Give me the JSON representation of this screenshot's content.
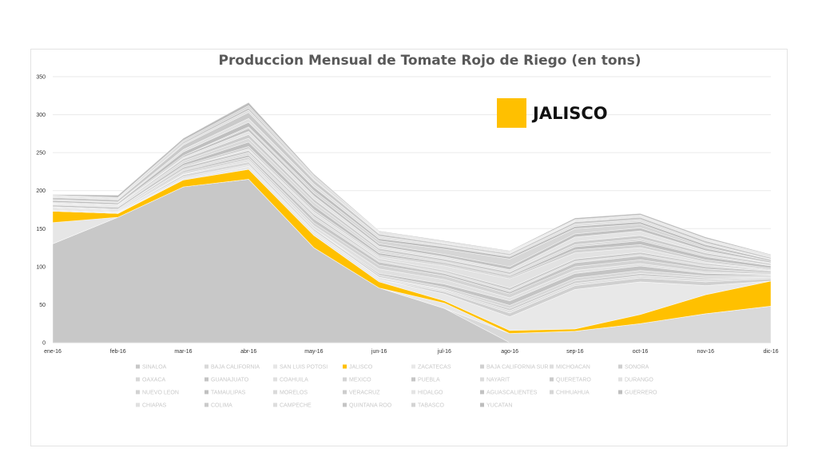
{
  "chart_data": {
    "type": "area",
    "stacked": true,
    "title": "Produccion Mensual de Tomate Rojo de Riego (en tons)",
    "xlabel": "",
    "ylabel": "",
    "ylim": [
      0,
      350
    ],
    "yticks": [
      0,
      50,
      100,
      150,
      200,
      250,
      300,
      350
    ],
    "grid": true,
    "legend_position": "bottom",
    "categories": [
      "ene-16",
      "feb-16",
      "mar-16",
      "abr-16",
      "may-16",
      "jun-16",
      "jul-16",
      "ago-16",
      "sep-16",
      "oct-16",
      "nov-16",
      "dic-16"
    ],
    "highlight_series": "JALISCO",
    "callout": {
      "label": "JALISCO",
      "color": "#ffc000"
    },
    "series": [
      {
        "name": "SINALOA",
        "color": "#c8c8c8",
        "values": [
          130,
          165,
          205,
          215,
          125,
          72,
          45,
          0,
          0,
          0,
          0,
          0
        ]
      },
      {
        "name": "BAJA CALIFORNIA",
        "color": "#d9d9d9",
        "values": [
          0,
          0,
          0,
          0,
          0,
          0,
          0,
          12,
          15,
          25,
          38,
          48
        ]
      },
      {
        "name": "SAN LUIS POTOSI",
        "color": "#e6e6e6",
        "values": [
          28,
          0,
          0,
          0,
          0,
          0,
          7,
          0,
          0,
          0,
          0,
          0
        ]
      },
      {
        "name": "JALISCO",
        "color": "#ffc000",
        "values": [
          15,
          5,
          9,
          13,
          16,
          8,
          3,
          4,
          3,
          12,
          25,
          33
        ]
      },
      {
        "name": "ZACATECAS",
        "color": "#e8e8e8",
        "values": [
          0,
          0,
          2,
          4,
          4,
          3,
          9,
          18,
          52,
          43,
          12,
          0
        ]
      },
      {
        "name": "BAJA CALIFORNIA SUR",
        "color": "#d0d0d0",
        "values": [
          0,
          0,
          0,
          0,
          0,
          0,
          3,
          5,
          5,
          5,
          5,
          3
        ]
      },
      {
        "name": "MICHOACAN",
        "color": "#dedede",
        "values": [
          1,
          1,
          2,
          2,
          2,
          2,
          2,
          3,
          3,
          3,
          3,
          2
        ]
      },
      {
        "name": "SONORA",
        "color": "#cfcfcf",
        "values": [
          0,
          0,
          0,
          0,
          0,
          1,
          1,
          3,
          3,
          3,
          2,
          0
        ]
      },
      {
        "name": "OAXACA",
        "color": "#d8d8d8",
        "values": [
          1,
          1,
          3,
          4,
          3,
          3,
          3,
          4,
          4,
          4,
          3,
          2
        ]
      },
      {
        "name": "GUANAJUATO",
        "color": "#c4c4c4",
        "values": [
          0,
          0,
          0,
          0,
          0,
          2,
          4,
          6,
          6,
          6,
          3,
          1
        ]
      },
      {
        "name": "COAHUILA",
        "color": "#e0e0e0",
        "values": [
          0,
          0,
          1,
          3,
          4,
          6,
          6,
          4,
          4,
          3,
          2,
          1
        ]
      },
      {
        "name": "MEXICO",
        "color": "#d4d4d4",
        "values": [
          1,
          1,
          2,
          3,
          4,
          5,
          5,
          5,
          5,
          5,
          4,
          2
        ]
      },
      {
        "name": "PUEBLA",
        "color": "#c6c6c6",
        "values": [
          1,
          1,
          2,
          3,
          5,
          4,
          3,
          3,
          5,
          5,
          3,
          2
        ]
      },
      {
        "name": "NAYARIT",
        "color": "#dcdcdc",
        "values": [
          1,
          1,
          2,
          3,
          3,
          2,
          2,
          2,
          2,
          2,
          2,
          1
        ]
      },
      {
        "name": "QUERETARO",
        "color": "#cbcbcb",
        "values": [
          1,
          1,
          3,
          3,
          3,
          2,
          2,
          3,
          3,
          3,
          2,
          1
        ]
      },
      {
        "name": "DURANGO",
        "color": "#e2e2e2",
        "values": [
          0,
          0,
          0,
          2,
          3,
          3,
          6,
          12,
          8,
          6,
          2,
          0
        ]
      },
      {
        "name": "NUEVO LEON",
        "color": "#d2d2d2",
        "values": [
          0,
          0,
          2,
          3,
          3,
          2,
          2,
          2,
          4,
          4,
          3,
          2
        ]
      },
      {
        "name": "TAMAULIPAS",
        "color": "#c0c0c0",
        "values": [
          2,
          2,
          3,
          6,
          5,
          3,
          2,
          2,
          4,
          5,
          4,
          3
        ]
      },
      {
        "name": "MORELOS",
        "color": "#dadada",
        "values": [
          1,
          1,
          3,
          5,
          5,
          3,
          2,
          2,
          3,
          3,
          2,
          1
        ]
      },
      {
        "name": "VERACRUZ",
        "color": "#cdcdcd",
        "values": [
          1,
          1,
          3,
          5,
          4,
          3,
          3,
          3,
          4,
          4,
          3,
          2
        ]
      },
      {
        "name": "HIDALGO",
        "color": "#e4e4e4",
        "values": [
          1,
          1,
          2,
          4,
          4,
          3,
          3,
          3,
          6,
          6,
          3,
          1
        ]
      },
      {
        "name": "AGUASCALIENTES",
        "color": "#c2c2c2",
        "values": [
          1,
          1,
          2,
          4,
          4,
          3,
          3,
          4,
          4,
          4,
          3,
          2
        ]
      },
      {
        "name": "CHIHUAHUA",
        "color": "#d6d6d6",
        "values": [
          0,
          0,
          0,
          2,
          3,
          4,
          7,
          10,
          7,
          5,
          2,
          0
        ]
      },
      {
        "name": "GUERRERO",
        "color": "#bfbfbf",
        "values": [
          2,
          2,
          5,
          6,
          5,
          3,
          3,
          3,
          3,
          3,
          3,
          2
        ]
      },
      {
        "name": "CHIAPAS",
        "color": "#e0e0e0",
        "values": [
          1,
          1,
          3,
          5,
          4,
          3,
          2,
          2,
          3,
          3,
          2,
          1
        ]
      },
      {
        "name": "COLIMA",
        "color": "#cacaca",
        "values": [
          3,
          3,
          6,
          8,
          5,
          3,
          2,
          2,
          3,
          3,
          3,
          2
        ]
      },
      {
        "name": "CAMPECHE",
        "color": "#dddddd",
        "values": [
          1,
          1,
          2,
          3,
          2,
          1,
          1,
          1,
          1,
          1,
          1,
          1
        ]
      },
      {
        "name": "QUINTANA ROO",
        "color": "#c5c5c5",
        "values": [
          1,
          1,
          2,
          3,
          2,
          1,
          1,
          1,
          1,
          1,
          1,
          1
        ]
      },
      {
        "name": "TABASCO",
        "color": "#d3d3d3",
        "values": [
          1,
          1,
          2,
          3,
          2,
          1,
          1,
          1,
          1,
          1,
          1,
          1
        ]
      },
      {
        "name": "YUCATAN",
        "color": "#bdbdbd",
        "values": [
          1,
          3,
          3,
          4,
          2,
          1,
          1,
          1,
          2,
          2,
          2,
          1
        ]
      }
    ]
  }
}
